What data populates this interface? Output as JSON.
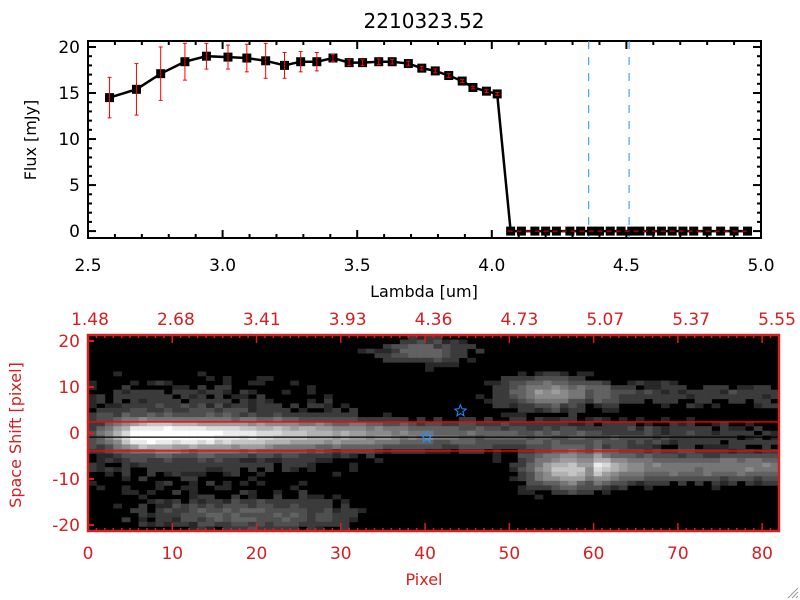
{
  "chart_data": [
    {
      "type": "line",
      "title": "2210323.52",
      "xlabel": "Lambda [um]",
      "ylabel": "Flux [mJy]",
      "xlim": [
        2.5,
        5.0
      ],
      "ylim": [
        -0.75,
        20.65
      ],
      "xticks": [
        "2.5",
        "3.0",
        "3.5",
        "4.0",
        "4.5",
        "5.0"
      ],
      "xtick_values": [
        2.5,
        3.0,
        3.5,
        4.0,
        4.5,
        5.0
      ],
      "yticks": [
        "0",
        "5",
        "10",
        "15",
        "20"
      ],
      "ytick_values": [
        0,
        5,
        10,
        15,
        20
      ],
      "series": [
        {
          "name": "flux",
          "color": "#000000",
          "error_color": "#ff0000",
          "x": [
            2.58,
            2.68,
            2.77,
            2.86,
            2.94,
            3.02,
            3.09,
            3.16,
            3.23,
            3.29,
            3.35,
            3.41,
            3.47,
            3.52,
            3.58,
            3.63,
            3.69,
            3.74,
            3.79,
            3.84,
            3.89,
            3.93,
            3.98,
            4.02,
            4.07,
            4.11,
            4.16,
            4.2,
            4.24,
            4.29,
            4.33,
            4.37,
            4.4,
            4.44,
            4.48,
            4.52,
            4.55,
            4.59,
            4.63,
            4.67,
            4.71,
            4.75,
            4.8,
            4.85,
            4.9,
            4.95
          ],
          "y": [
            14.5,
            15.4,
            17.1,
            18.4,
            19.0,
            18.9,
            18.8,
            18.5,
            18.0,
            18.4,
            18.4,
            18.8,
            18.3,
            18.3,
            18.4,
            18.4,
            18.2,
            17.7,
            17.4,
            16.9,
            16.3,
            15.6,
            15.2,
            14.9,
            0,
            0,
            0,
            0,
            0,
            0,
            0,
            0,
            0,
            0,
            0,
            0,
            0,
            0,
            0,
            0,
            0,
            0,
            0,
            0,
            0,
            0
          ],
          "yerr": [
            2.2,
            2.8,
            2.9,
            2.0,
            1.4,
            1.3,
            1.5,
            1.9,
            1.4,
            1.1,
            1.0,
            0.4,
            0.3,
            0.3,
            0.3,
            0.25,
            0.25,
            0.2,
            0.2,
            0.2,
            0.15,
            0.15,
            0.15,
            0.15,
            0,
            0,
            0,
            0,
            0,
            0,
            0,
            0,
            0,
            0,
            0,
            0,
            0,
            0,
            0,
            0,
            0,
            0,
            0,
            0,
            0,
            0
          ]
        }
      ],
      "vlines": [
        {
          "x": 4.36,
          "color": "#1e90ff",
          "style": "dashed"
        },
        {
          "x": 4.51,
          "color": "#1e90ff",
          "style": "dashed"
        }
      ],
      "grid": false
    },
    {
      "type": "heatmap",
      "xlabel": "Pixel",
      "ylabel": "Space Shift [pixel]",
      "axis_color": "#d42020",
      "xlim": [
        0,
        82
      ],
      "ylim": [
        -21.3,
        21.3
      ],
      "xticks": [
        "0",
        "10",
        "20",
        "30",
        "40",
        "50",
        "60",
        "70",
        "80"
      ],
      "xtick_values": [
        0,
        10,
        20,
        30,
        40,
        50,
        60,
        70,
        80
      ],
      "yticks": [
        "20",
        "10",
        "0",
        "-10",
        "-20"
      ],
      "ytick_values": [
        20,
        10,
        0,
        -10,
        -20
      ],
      "top_xticks": [
        "1.48",
        "2.68",
        "3.41",
        "3.93",
        "4.36",
        "4.73",
        "5.07",
        "5.37",
        "5.55"
      ],
      "colormap": "gray",
      "sources": [
        {
          "x": 55,
          "y": 9,
          "amp": 0.55,
          "sx": 4,
          "sy": 2.5
        },
        {
          "x": 57,
          "y": -8,
          "amp": 0.75,
          "sx": 3.5,
          "sy": 3
        },
        {
          "x": 20,
          "y": -18,
          "amp": 0.32,
          "sx": 9,
          "sy": 2.5
        },
        {
          "x": 40,
          "y": 18,
          "amp": 0.32,
          "sx": 4,
          "sy": 2
        },
        {
          "x": 12,
          "y": 0,
          "amp": 0.22,
          "sx": 14,
          "sy": 8
        }
      ],
      "trace": {
        "peak_x": 7,
        "center_y": -0.5,
        "amp": 0.98,
        "width": 2.2,
        "decay": 38
      },
      "tails": [
        {
          "y": 8.5,
          "from": 60,
          "to": 82,
          "amp": 0.17,
          "sy": 2
        },
        {
          "y": -7.5,
          "from": 60,
          "to": 82,
          "amp": 0.45,
          "sy": 2.2
        }
      ],
      "hlines": [
        {
          "y": 2.4,
          "color": "#ff0000"
        },
        {
          "y": -3.9,
          "color": "#ff0000"
        },
        {
          "y": -0.9,
          "color": "#000000"
        }
      ],
      "markers": [
        {
          "x": 44.2,
          "y": 4.8,
          "symbol": "star",
          "color": "#1e90ff"
        },
        {
          "x": 40.2,
          "y": -0.9,
          "symbol": "star",
          "color": "#1e90ff"
        }
      ]
    }
  ]
}
